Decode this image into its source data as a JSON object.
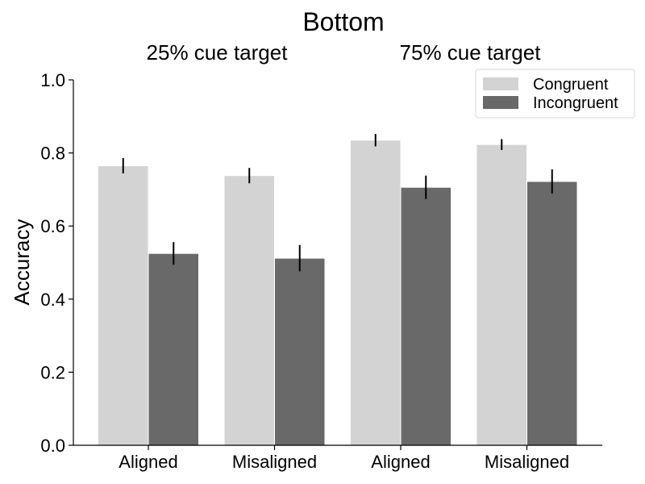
{
  "chart_data": {
    "type": "bar",
    "title": "Bottom",
    "group_labels": [
      "25% cue target",
      "75% cue target"
    ],
    "categories": [
      "Aligned",
      "Misaligned",
      "Aligned",
      "Misaligned"
    ],
    "xlabel": "",
    "ylabel": "Accuracy",
    "ylim": [
      0,
      1.0
    ],
    "yticks": [
      "0.0",
      "0.2",
      "0.4",
      "0.6",
      "0.8",
      "1.0"
    ],
    "grid": false,
    "legend_position": "top-right",
    "series": [
      {
        "name": "Congruent",
        "color": "#d3d3d3",
        "values": [
          0.765,
          0.738,
          0.835,
          0.823
        ],
        "errors": [
          0.021,
          0.021,
          0.017,
          0.015
        ]
      },
      {
        "name": "Incongruent",
        "color": "#696969",
        "values": [
          0.525,
          0.512,
          0.706,
          0.722
        ],
        "errors": [
          0.031,
          0.036,
          0.032,
          0.033
        ]
      }
    ]
  }
}
